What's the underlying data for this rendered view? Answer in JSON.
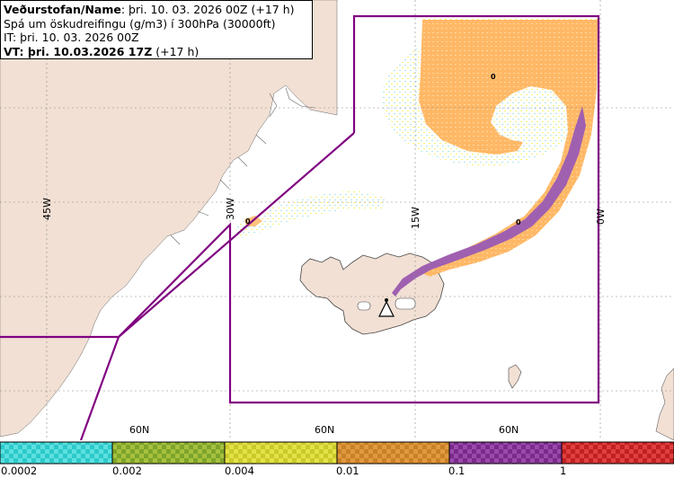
{
  "header": {
    "line1_bold": "Veðurstofan/Name",
    "line1_rest": ": þri. 10. 03. 2026 00Z (+17 h)",
    "line2": "Spá um öskudreifingu (g/m3) í 300hPa (30000ft)",
    "line3": "IT: þri. 10. 03. 2026 00Z",
    "line4_bold": "VT: þri. 10.03.2026 17Z",
    "line4_rest": " (+17 h)"
  },
  "map": {
    "lon_labels": [
      "45W",
      "30W",
      "15W",
      "0W"
    ],
    "lat_labels": [
      "60N",
      "60N",
      "60N"
    ],
    "contour_labels": [
      "0",
      "0",
      "0"
    ],
    "colors": {
      "land": "#f2e0d4",
      "sea": "#ffffff",
      "zone_border": "#800080",
      "ash_light": "#a9e3e6",
      "ash_yellow": "#f2f26a",
      "ash_orange": "#ffb866",
      "ash_purple": "#a060b0"
    }
  },
  "legend": {
    "bins": [
      {
        "color_a": "#2cc9c9",
        "color_b": "#5ee0e0"
      },
      {
        "color_a": "#7da32a",
        "color_b": "#a6c13e"
      },
      {
        "color_a": "#c9c92a",
        "color_b": "#e3e348"
      },
      {
        "color_a": "#c98026",
        "color_b": "#e09a40"
      },
      {
        "color_a": "#7a2a8a",
        "color_b": "#9a4aaa"
      },
      {
        "color_a": "#c22020",
        "color_b": "#e04040"
      }
    ],
    "tick_labels": [
      "0.0002",
      "0.002",
      "0.004",
      "0.01",
      "0.1",
      "1"
    ]
  }
}
